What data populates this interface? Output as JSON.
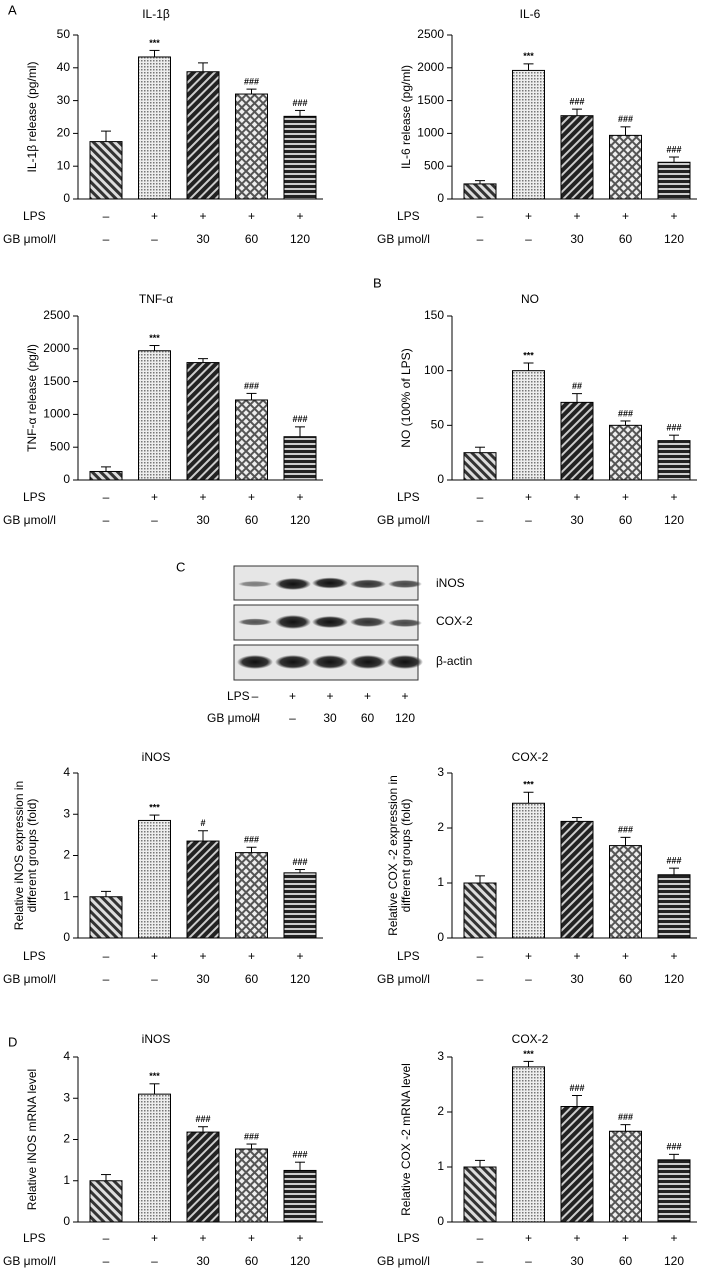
{
  "panel_labels": [
    "A",
    "B",
    "C",
    "D"
  ],
  "chart_data": [
    {
      "type": "bar",
      "title": "IL-1β",
      "ylabel": [
        "IL-1β release (pg/ml)"
      ],
      "ylim": [
        0,
        50
      ],
      "yticks": [
        0,
        10,
        20,
        30,
        40,
        50
      ],
      "values": [
        17.5,
        43.3,
        38.8,
        32,
        25.2
      ],
      "errors": [
        3.2,
        2,
        2.7,
        1.5,
        1.8
      ],
      "annotations": [
        null,
        "***",
        null,
        "###",
        "###"
      ],
      "conditions": [
        {
          "name": "LPS",
          "labels": [
            "–",
            "+",
            "+",
            "+",
            "+"
          ]
        },
        {
          "name": "GB μmol/l",
          "labels": [
            "–",
            "–",
            "30",
            "60",
            "120"
          ]
        }
      ]
    },
    {
      "type": "bar",
      "title": "IL-6",
      "ylabel": [
        "IL-6 release (pg/ml)"
      ],
      "ylim": [
        0,
        2500
      ],
      "yticks": [
        0,
        500,
        1000,
        1500,
        2000,
        2500
      ],
      "values": [
        230,
        1960,
        1270,
        970,
        560
      ],
      "errors": [
        50,
        100,
        100,
        130,
        80
      ],
      "annotations": [
        null,
        "***",
        "###",
        "###",
        "###"
      ],
      "conditions": [
        {
          "name": "LPS",
          "labels": [
            "–",
            "+",
            "+",
            "+",
            "+"
          ]
        },
        {
          "name": "GB μmol/l",
          "labels": [
            "–",
            "–",
            "30",
            "60",
            "120"
          ]
        }
      ]
    },
    {
      "type": "bar",
      "title": "TNF-α",
      "ylabel": [
        "TNF-α release (pg/l)"
      ],
      "ylim": [
        0,
        2500
      ],
      "yticks": [
        0,
        500,
        1000,
        1500,
        2000,
        2500
      ],
      "values": [
        130,
        1970,
        1790,
        1220,
        660
      ],
      "errors": [
        70,
        80,
        60,
        100,
        150
      ],
      "annotations": [
        null,
        "***",
        null,
        "###",
        "###"
      ],
      "conditions": [
        {
          "name": "LPS",
          "labels": [
            "–",
            "+",
            "+",
            "+",
            "+"
          ]
        },
        {
          "name": "GB μmol/l",
          "labels": [
            "–",
            "–",
            "30",
            "60",
            "120"
          ]
        }
      ]
    },
    {
      "type": "bar",
      "title": "NO",
      "ylabel": [
        "NO (100% of  LPS)"
      ],
      "ylim": [
        0,
        150
      ],
      "yticks": [
        0,
        50,
        100,
        150
      ],
      "values": [
        25,
        100,
        71,
        50,
        36
      ],
      "errors": [
        5,
        7,
        8,
        4,
        5
      ],
      "annotations": [
        null,
        "***",
        "##",
        "###",
        "###"
      ],
      "conditions": [
        {
          "name": "LPS",
          "labels": [
            "–",
            "+",
            "+",
            "+",
            "+"
          ]
        },
        {
          "name": "GB μmol/l",
          "labels": [
            "–",
            "–",
            "30",
            "60",
            "120"
          ]
        }
      ]
    },
    {
      "type": "bar",
      "title": "iNOS",
      "ylabel": [
        "Relative iNOS expression in",
        "different groups (fold)"
      ],
      "ylim": [
        0,
        4
      ],
      "yticks": [
        0,
        1,
        2,
        3,
        4
      ],
      "values": [
        1.0,
        2.85,
        2.35,
        2.07,
        1.58
      ],
      "errors": [
        0.13,
        0.13,
        0.25,
        0.13,
        0.08
      ],
      "annotations": [
        null,
        "***",
        "#",
        "###",
        "###"
      ],
      "conditions": [
        {
          "name": "LPS",
          "labels": [
            "–",
            "+",
            "+",
            "+",
            "+"
          ]
        },
        {
          "name": "GB μmol/l",
          "labels": [
            "–",
            "–",
            "30",
            "60",
            "120"
          ]
        }
      ]
    },
    {
      "type": "bar",
      "title": "COX-2",
      "ylabel": [
        "Relative COX -2 expression in",
        "different groups (fold)"
      ],
      "ylim": [
        0,
        3
      ],
      "yticks": [
        0,
        1,
        2,
        3
      ],
      "values": [
        1.0,
        2.45,
        2.12,
        1.68,
        1.15
      ],
      "errors": [
        0.13,
        0.2,
        0.07,
        0.15,
        0.12
      ],
      "annotations": [
        null,
        "***",
        null,
        "###",
        "###"
      ],
      "conditions": [
        {
          "name": "LPS",
          "labels": [
            "–",
            "+",
            "+",
            "+",
            "+"
          ]
        },
        {
          "name": "GB μmol/l",
          "labels": [
            "–",
            "–",
            "30",
            "60",
            "120"
          ]
        }
      ]
    },
    {
      "type": "bar",
      "title": "iNOS",
      "ylabel": [
        "Relative iNOS mRNA level"
      ],
      "ylim": [
        0,
        4
      ],
      "yticks": [
        0,
        1,
        2,
        3,
        4
      ],
      "values": [
        1.0,
        3.1,
        2.18,
        1.77,
        1.25
      ],
      "errors": [
        0.15,
        0.25,
        0.13,
        0.12,
        0.2
      ],
      "annotations": [
        null,
        "***",
        "###",
        "###",
        "###"
      ],
      "conditions": [
        {
          "name": "LPS",
          "labels": [
            "–",
            "+",
            "+",
            "+",
            "+"
          ]
        },
        {
          "name": "GB μmol/l",
          "labels": [
            "–",
            "–",
            "30",
            "60",
            "120"
          ]
        }
      ]
    },
    {
      "type": "bar",
      "title": "COX-2",
      "ylabel": [
        "Relative COX -2 mRNA level"
      ],
      "ylim": [
        0,
        3
      ],
      "yticks": [
        0,
        1,
        2,
        3
      ],
      "values": [
        1.0,
        2.82,
        2.1,
        1.65,
        1.13
      ],
      "errors": [
        0.12,
        0.1,
        0.2,
        0.12,
        0.1
      ],
      "annotations": [
        null,
        "***",
        "###",
        "###",
        "###"
      ],
      "conditions": [
        {
          "name": "LPS",
          "labels": [
            "–",
            "+",
            "+",
            "+",
            "+"
          ]
        },
        {
          "name": "GB μmol/l",
          "labels": [
            "–",
            "–",
            "30",
            "60",
            "120"
          ]
        }
      ]
    }
  ],
  "blot": {
    "bands": [
      "iNOS",
      "COX-2",
      "β-actin"
    ],
    "conditions": [
      {
        "name": "LPS",
        "labels": [
          "–",
          "+",
          "+",
          "+",
          "+"
        ]
      },
      {
        "name": "GB μmol/l",
        "labels": [
          "–",
          "–",
          "30",
          "60",
          "120"
        ]
      }
    ]
  }
}
